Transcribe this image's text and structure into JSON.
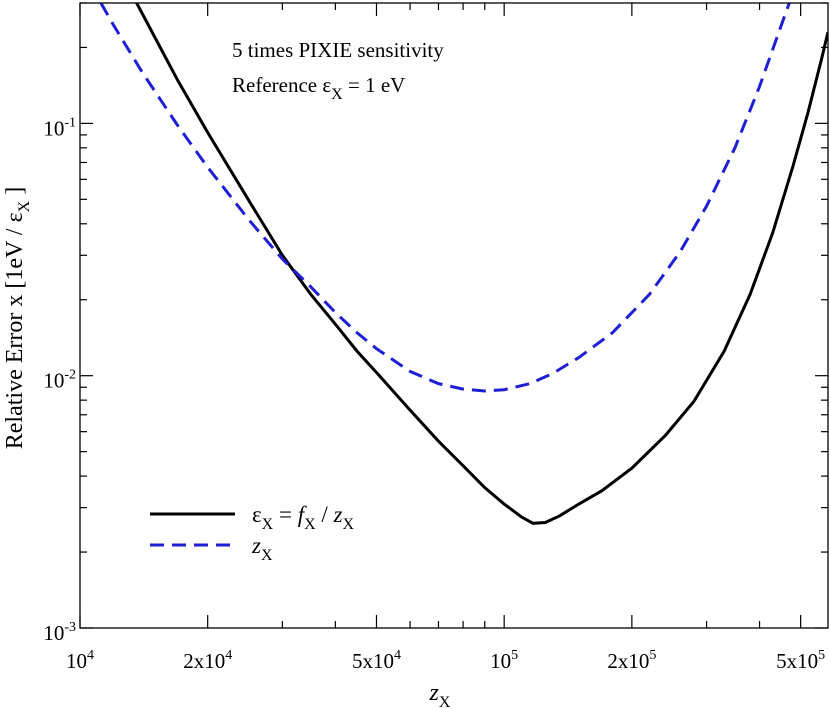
{
  "chart_data": {
    "type": "line",
    "title": "",
    "xscale": "log",
    "yscale": "log",
    "xlim": [
      10000,
      580000
    ],
    "ylim": [
      0.001,
      0.3
    ],
    "grid": false,
    "legend_position": "bottom-left",
    "xlabel": {
      "base": "z",
      "sub": "X"
    },
    "ylabel": {
      "text": "Relative Error x [1eV / ε",
      "sub": "X",
      "close": " ]"
    },
    "annotations": [
      {
        "text": "5 times PIXIE sensitivity"
      },
      {
        "text": "Reference ε",
        "sub": "X",
        "rest": " = 1 eV"
      }
    ],
    "x_major_ticks": [
      {
        "value": 10000,
        "mantissa": "",
        "base": "10",
        "exp": "4"
      },
      {
        "value": 20000,
        "mantissa": "2x",
        "base": "10",
        "exp": "4"
      },
      {
        "value": 50000,
        "mantissa": "5x",
        "base": "10",
        "exp": "4"
      },
      {
        "value": 100000,
        "mantissa": "",
        "base": "10",
        "exp": "5"
      },
      {
        "value": 200000,
        "mantissa": "2x",
        "base": "10",
        "exp": "5"
      },
      {
        "value": 500000,
        "mantissa": "5x",
        "base": "10",
        "exp": "5"
      }
    ],
    "x_minor_ticks": [
      30000,
      40000,
      60000,
      70000,
      80000,
      90000,
      300000,
      400000
    ],
    "y_major_ticks": [
      {
        "value": 0.001,
        "base": "10",
        "exp": "-3"
      },
      {
        "value": 0.01,
        "base": "10",
        "exp": "-2"
      },
      {
        "value": 0.1,
        "base": "10",
        "exp": "-1"
      }
    ],
    "y_minor_ticks": [
      0.002,
      0.003,
      0.004,
      0.005,
      0.006,
      0.007,
      0.008,
      0.009,
      0.02,
      0.03,
      0.04,
      0.05,
      0.06,
      0.07,
      0.08,
      0.09,
      0.2,
      0.3
    ],
    "series": [
      {
        "legend": {
          "a": "ε",
          "a_sub": "X",
          "eq": " = ",
          "b": "f",
          "b_sub": "X",
          "slash": " / ",
          "c": "z",
          "c_sub": "X"
        },
        "color": "#000000",
        "dash": "solid",
        "x": [
          13600,
          15000,
          17000,
          20000,
          25000,
          30000,
          35000,
          40000,
          45000,
          50000,
          60000,
          70000,
          80000,
          90000,
          100000,
          110000,
          117000,
          125000,
          135000,
          150000,
          170000,
          200000,
          240000,
          280000,
          330000,
          380000,
          430000,
          480000,
          520000,
          560000,
          580000
        ],
        "y": [
          0.3,
          0.22,
          0.148,
          0.092,
          0.0495,
          0.03,
          0.021,
          0.016,
          0.0125,
          0.0103,
          0.0073,
          0.0055,
          0.0044,
          0.0036,
          0.0031,
          0.00275,
          0.0026,
          0.00262,
          0.00278,
          0.0031,
          0.0035,
          0.0043,
          0.0058,
          0.0079,
          0.0125,
          0.021,
          0.037,
          0.068,
          0.11,
          0.18,
          0.23
        ]
      },
      {
        "legend": {
          "a": "z",
          "a_sub": "X"
        },
        "color": "#1f1fd6",
        "dash": "dashed",
        "x": [
          11200,
          12000,
          14000,
          17000,
          20000,
          25000,
          30000,
          35000,
          40000,
          45000,
          50000,
          60000,
          70000,
          80000,
          90000,
          100000,
          115000,
          130000,
          150000,
          180000,
          220000,
          260000,
          300000,
          350000,
          400000,
          440000,
          470000
        ],
        "y": [
          0.3,
          0.245,
          0.16,
          0.098,
          0.067,
          0.0415,
          0.029,
          0.0225,
          0.0178,
          0.0148,
          0.0128,
          0.0104,
          0.0093,
          0.00885,
          0.0087,
          0.0088,
          0.0093,
          0.0102,
          0.0118,
          0.0148,
          0.021,
          0.031,
          0.047,
          0.08,
          0.14,
          0.22,
          0.3
        ]
      }
    ]
  }
}
